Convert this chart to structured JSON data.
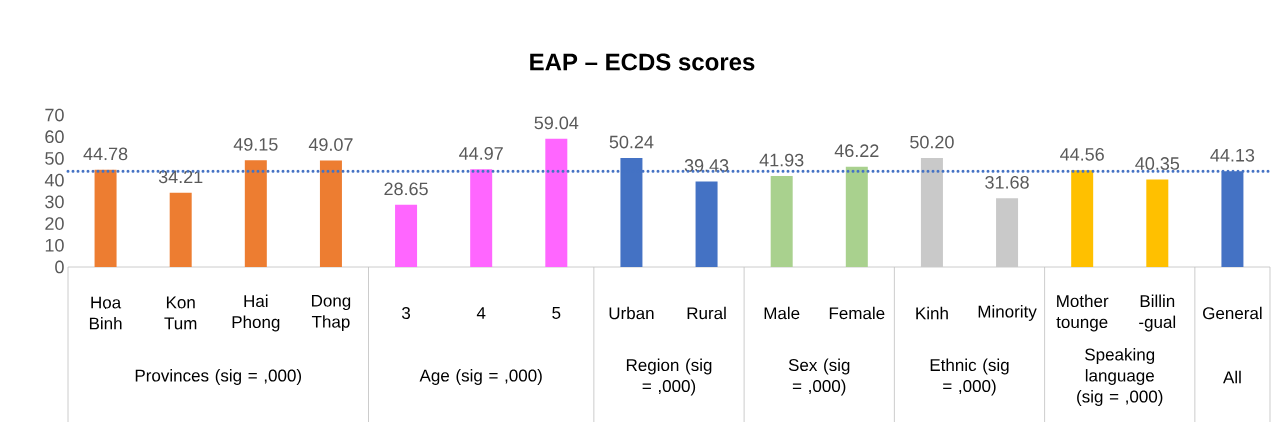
{
  "chart_data": {
    "type": "bar",
    "title": "EAP – ECDS scores",
    "categories": [
      "Hoa Binh",
      "Kon Tum",
      "Hai Phong",
      "Dong Thap",
      "3",
      "4",
      "5",
      "Urban",
      "Rural",
      "Male",
      "Female",
      "Kinh",
      "Minority",
      "Mother tounge",
      "Billin -gual",
      "General"
    ],
    "values": [
      44.78,
      34.21,
      49.15,
      49.07,
      28.65,
      44.97,
      59.04,
      50.24,
      39.43,
      41.93,
      46.22,
      50.2,
      31.68,
      44.56,
      40.35,
      44.13
    ],
    "colors": [
      "#ed7d31",
      "#ed7d31",
      "#ed7d31",
      "#ed7d31",
      "#ff66ff",
      "#ff66ff",
      "#ff66ff",
      "#4472c4",
      "#4472c4",
      "#a9d18e",
      "#a9d18e",
      "#c9c9c9",
      "#c9c9c9",
      "#ffc000",
      "#ffc000",
      "#4472c4"
    ],
    "ylim": [
      0,
      70
    ],
    "yticks": [
      0,
      10,
      20,
      30,
      40,
      50,
      60,
      70
    ],
    "value_labels": [
      "44.78",
      "34.21",
      "49.15",
      "49.07",
      "28.65",
      "44.97",
      "59.04",
      "50.24",
      "39.43",
      "41.93",
      "46.22",
      "50.20",
      "31.68",
      "44.56",
      "40.35",
      "44.13"
    ],
    "ref_lines": [
      {
        "axis": "y",
        "value": 44.13,
        "color": "#4472c4",
        "line_style": "dotted"
      }
    ],
    "annotations": [
      "Provinces (sig = ,000)",
      "Age (sig = ,000)",
      "Region (sig = ,000)",
      "Sex (sig = ,000)",
      "Ethnic (sig = ,000)",
      "Speaking language (sig = ,000)",
      "All"
    ]
  }
}
